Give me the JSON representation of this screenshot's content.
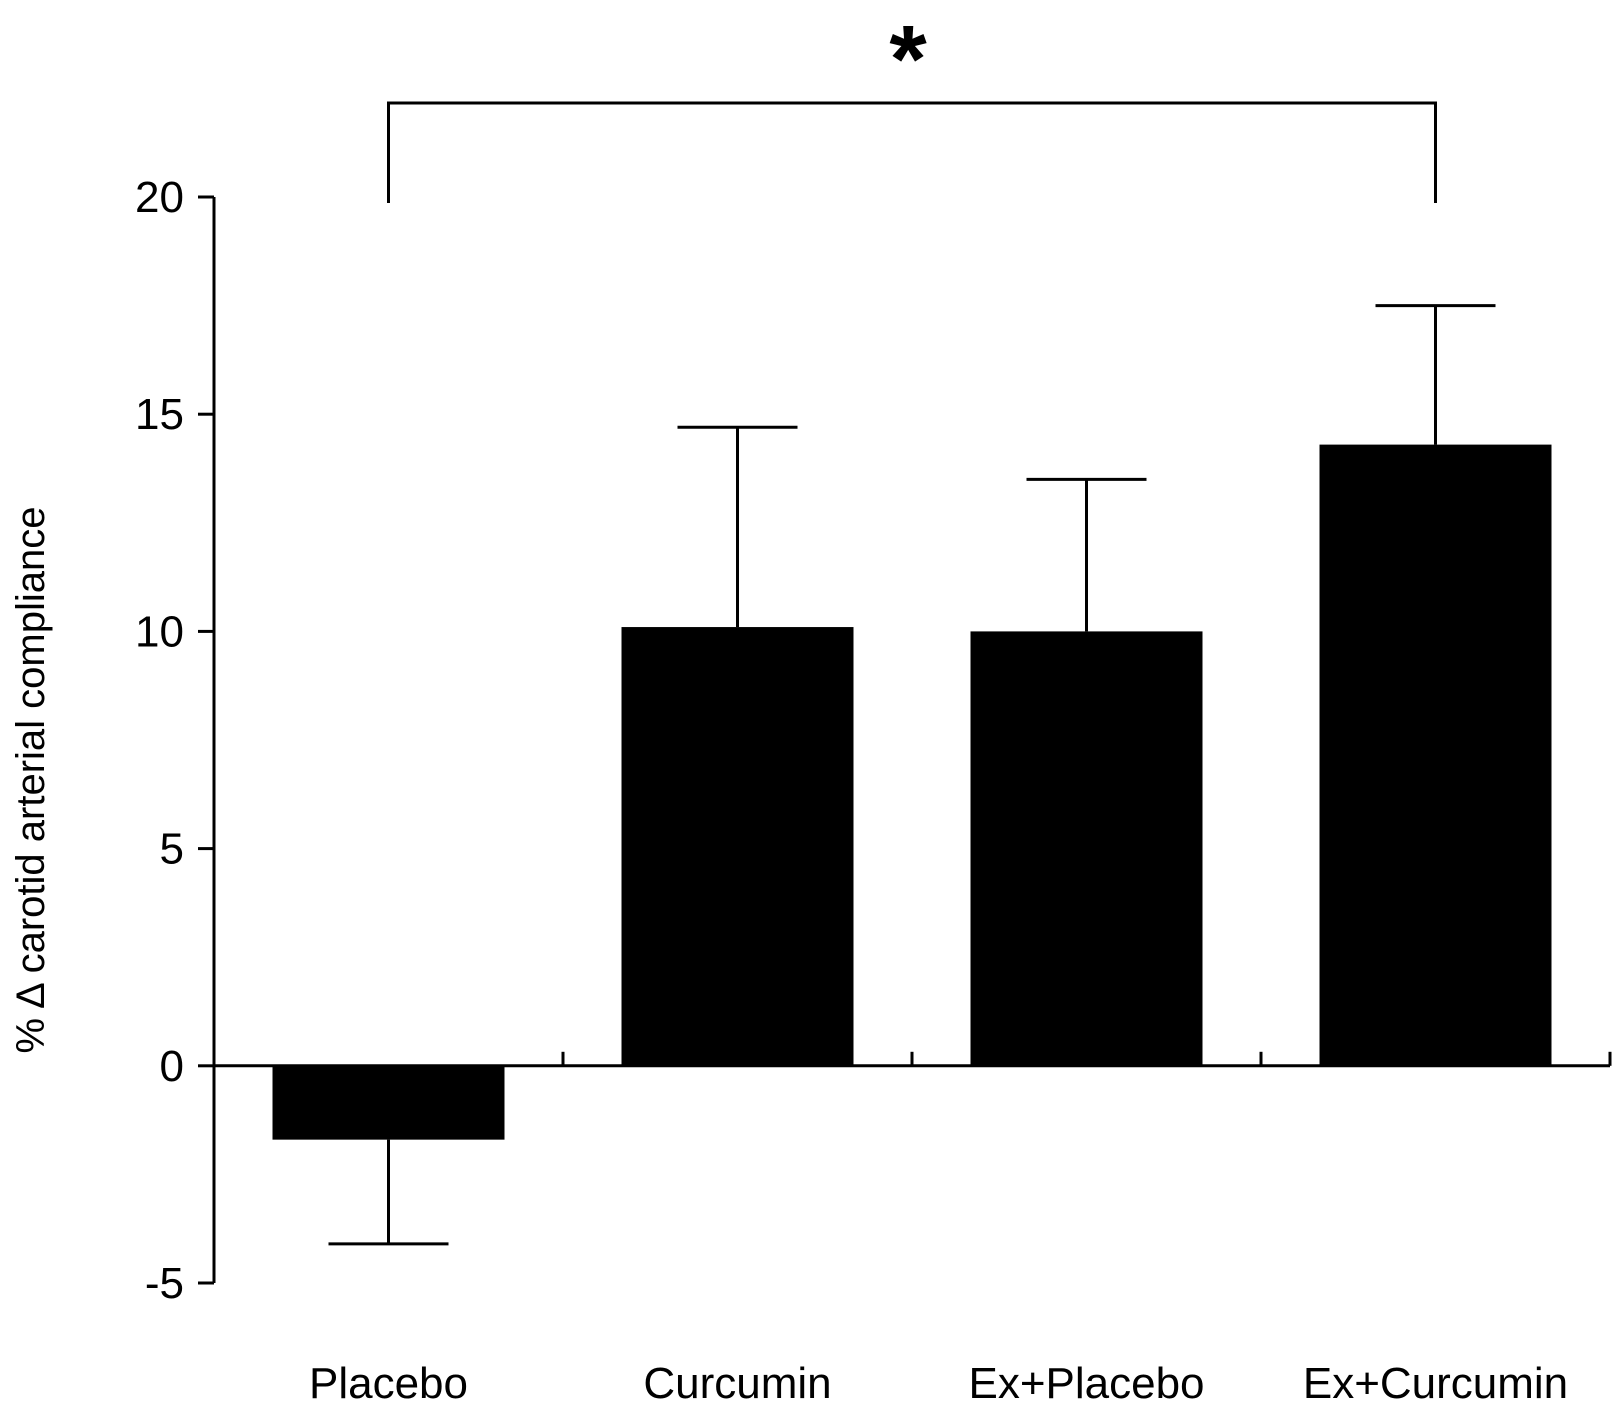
{
  "chart_data": {
    "type": "bar",
    "title": "",
    "xlabel": "",
    "ylabel": "% Δ carotid arterial compliance",
    "categories": [
      "Placebo",
      "Curcumin",
      "Ex+Placebo",
      "Ex+Curcumin"
    ],
    "values": [
      -1.7,
      10.1,
      10.0,
      14.3
    ],
    "error_upper": [
      2.4,
      4.6,
      3.5,
      3.2
    ],
    "ylim": [
      -5,
      20
    ],
    "yticks": [
      -5,
      0,
      5,
      10,
      15,
      20
    ],
    "ytick_labels": [
      "-5",
      "0",
      "5",
      "10",
      "15",
      "20"
    ],
    "grid": false,
    "bar_color": "#000000",
    "significance": {
      "from": "Placebo",
      "to": "Ex+Curcumin",
      "label": "*"
    }
  }
}
